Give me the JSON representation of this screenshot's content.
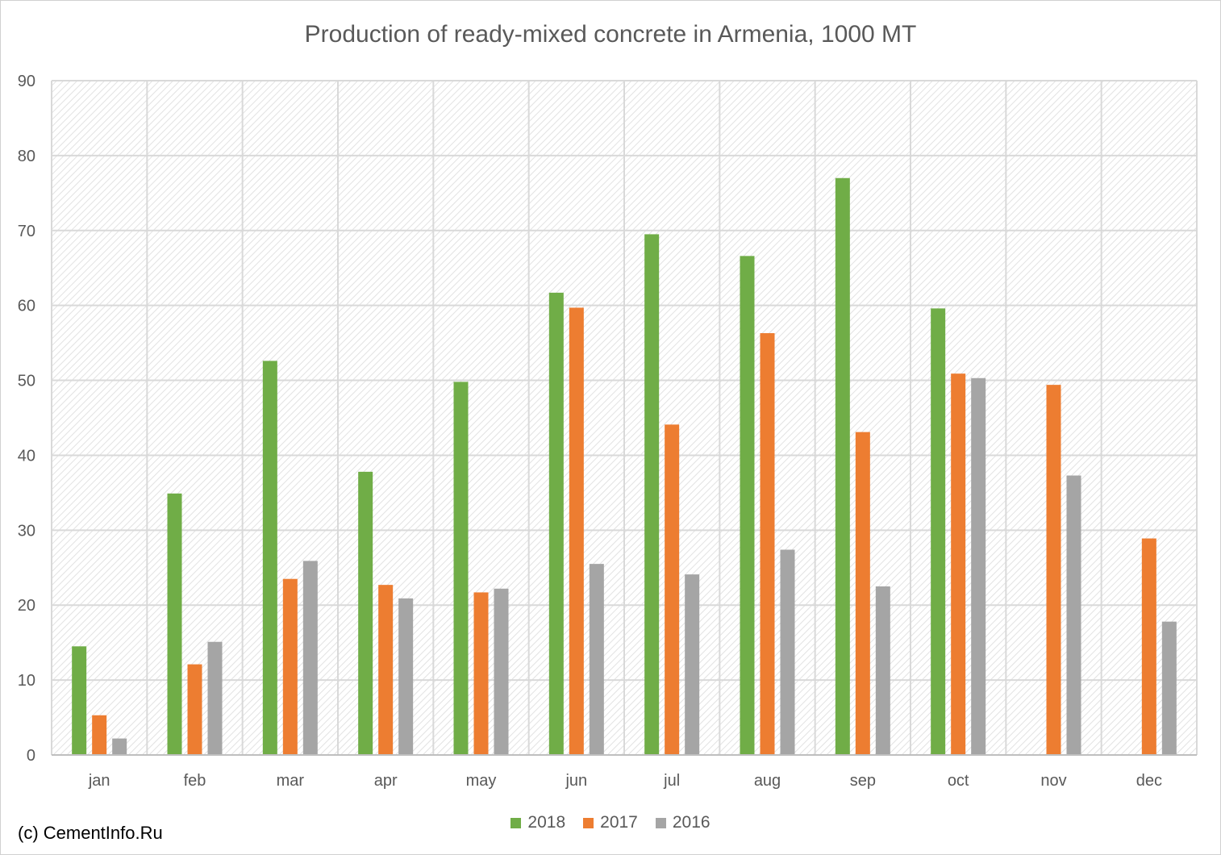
{
  "chart_data": {
    "type": "bar",
    "title": "Production of ready-mixed concrete in Armenia, 1000 MT",
    "xlabel": "",
    "ylabel": "",
    "categories": [
      "jan",
      "feb",
      "mar",
      "apr",
      "may",
      "jun",
      "jul",
      "aug",
      "sep",
      "oct",
      "nov",
      "dec"
    ],
    "ylim": [
      0,
      90
    ],
    "yticks": [
      0,
      10,
      20,
      30,
      40,
      50,
      60,
      70,
      80,
      90
    ],
    "grid": true,
    "legend_position": "bottom",
    "series": [
      {
        "name": "2018",
        "color": "#70AD47",
        "values": [
          14.5,
          34.9,
          52.6,
          37.8,
          49.8,
          61.7,
          69.5,
          66.6,
          77.0,
          59.6,
          null,
          null
        ]
      },
      {
        "name": "2017",
        "color": "#ED7D31",
        "values": [
          5.3,
          12.1,
          23.5,
          22.7,
          21.7,
          59.7,
          44.1,
          56.3,
          43.1,
          50.9,
          49.4,
          28.9
        ]
      },
      {
        "name": "2016",
        "color": "#A5A5A5",
        "values": [
          2.2,
          15.1,
          25.9,
          20.9,
          22.2,
          25.5,
          24.1,
          27.4,
          22.5,
          50.3,
          37.3,
          17.8
        ]
      }
    ]
  },
  "footer": {
    "copyright": "(c) CementInfo.Ru"
  }
}
